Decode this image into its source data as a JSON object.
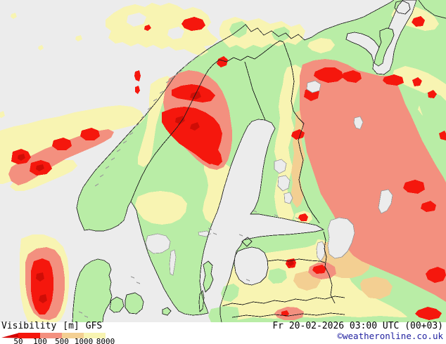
{
  "footer": {
    "product": "Visibility",
    "unit": "[m]",
    "model": "GFS",
    "datetime": "Fr 20-02-2026 03:00 UTC (00+03)",
    "copyright": "©weatheronline.co.uk"
  },
  "scale": {
    "ticks": [
      "50",
      "100",
      "500",
      "1000",
      "8000"
    ],
    "segment_colors": [
      "#f5170d",
      "#f3907f",
      "#f3cf92",
      "#f8f4b2"
    ],
    "arrow_color": "#d40000"
  },
  "palette": {
    "sea": "#ececec",
    "land": "#b9eda6",
    "fog_yellow": "#f8f4b2",
    "tan": "#f3cf92",
    "salmon": "#f3907f",
    "red": "#f5170d",
    "dark_red": "#cf0d06",
    "lake": "#ececec",
    "coast": "#2b2b2b",
    "coast_minor": "#9a9a9a",
    "border": "#1a1a1a",
    "text": "#000000",
    "copyright_blue": "#2222a0",
    "background": "#ffffff"
  }
}
